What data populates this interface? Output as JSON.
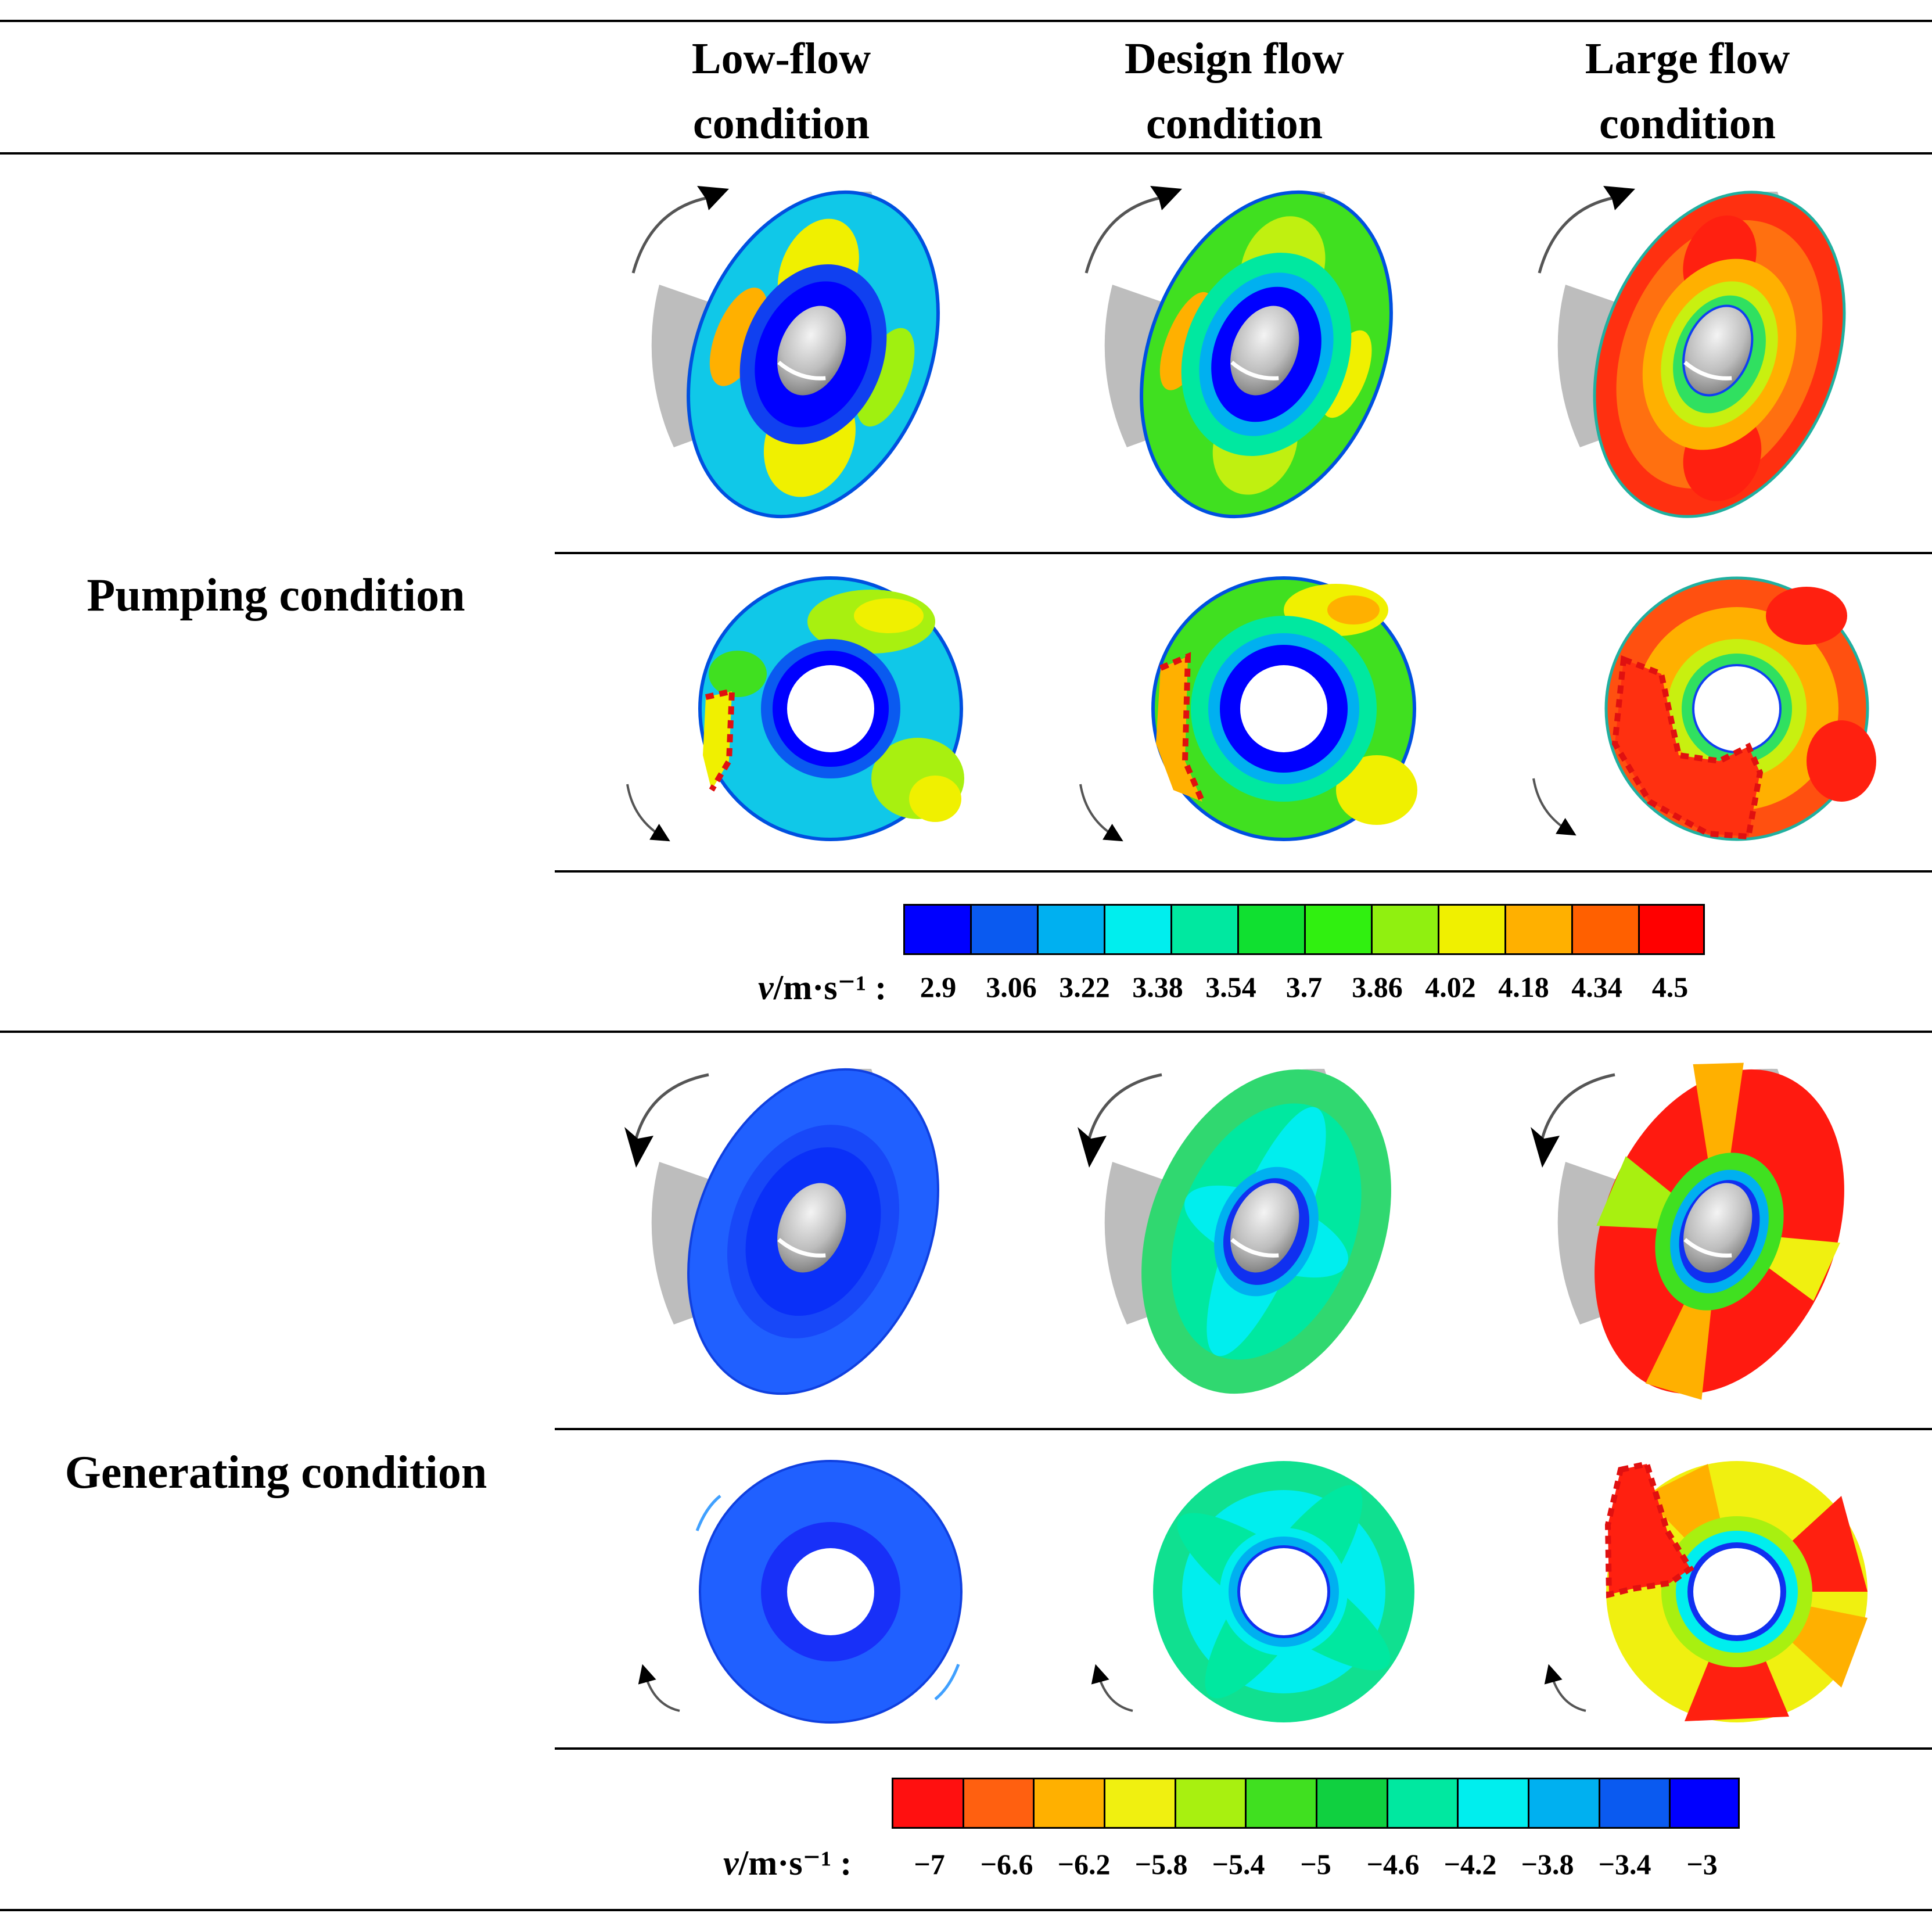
{
  "columns": [
    {
      "line1": "Low-flow",
      "line2": "condition"
    },
    {
      "line1": "Design flow",
      "line2": "condition"
    },
    {
      "line1": "Large flow",
      "line2": "condition"
    }
  ],
  "rows": {
    "pumping": "Pumping condition",
    "generating": "Generating condition"
  },
  "legend_pumping": {
    "label_var": "v",
    "label_unit": "/m·s⁻¹ :",
    "ticks": [
      "2.9",
      "3.06",
      "3.22",
      "3.38",
      "3.54",
      "3.7",
      "3.86",
      "4.02",
      "4.18",
      "4.34",
      "4.5"
    ],
    "colors": [
      "#0000ff",
      "#0a5af0",
      "#00b0f0",
      "#00eeee",
      "#00e8a0",
      "#10e030",
      "#30f010",
      "#90f010",
      "#f0f000",
      "#ffb000",
      "#ff6000",
      "#ff0000"
    ]
  },
  "legend_generating": {
    "label_var": "v",
    "label_unit": "/m·s⁻¹ :",
    "ticks": [
      "−7",
      "−6.6",
      "−6.2",
      "−5.8",
      "−5.4",
      "−5",
      "−4.6",
      "−4.2",
      "−3.8",
      "−3.4",
      "−3"
    ],
    "colors": [
      "#ff1010",
      "#ff6010",
      "#ffb000",
      "#f0f010",
      "#a8f010",
      "#40e020",
      "#10d040",
      "#00e8a0",
      "#00eeee",
      "#00b0f0",
      "#0a5af0",
      "#0000ff"
    ]
  }
}
